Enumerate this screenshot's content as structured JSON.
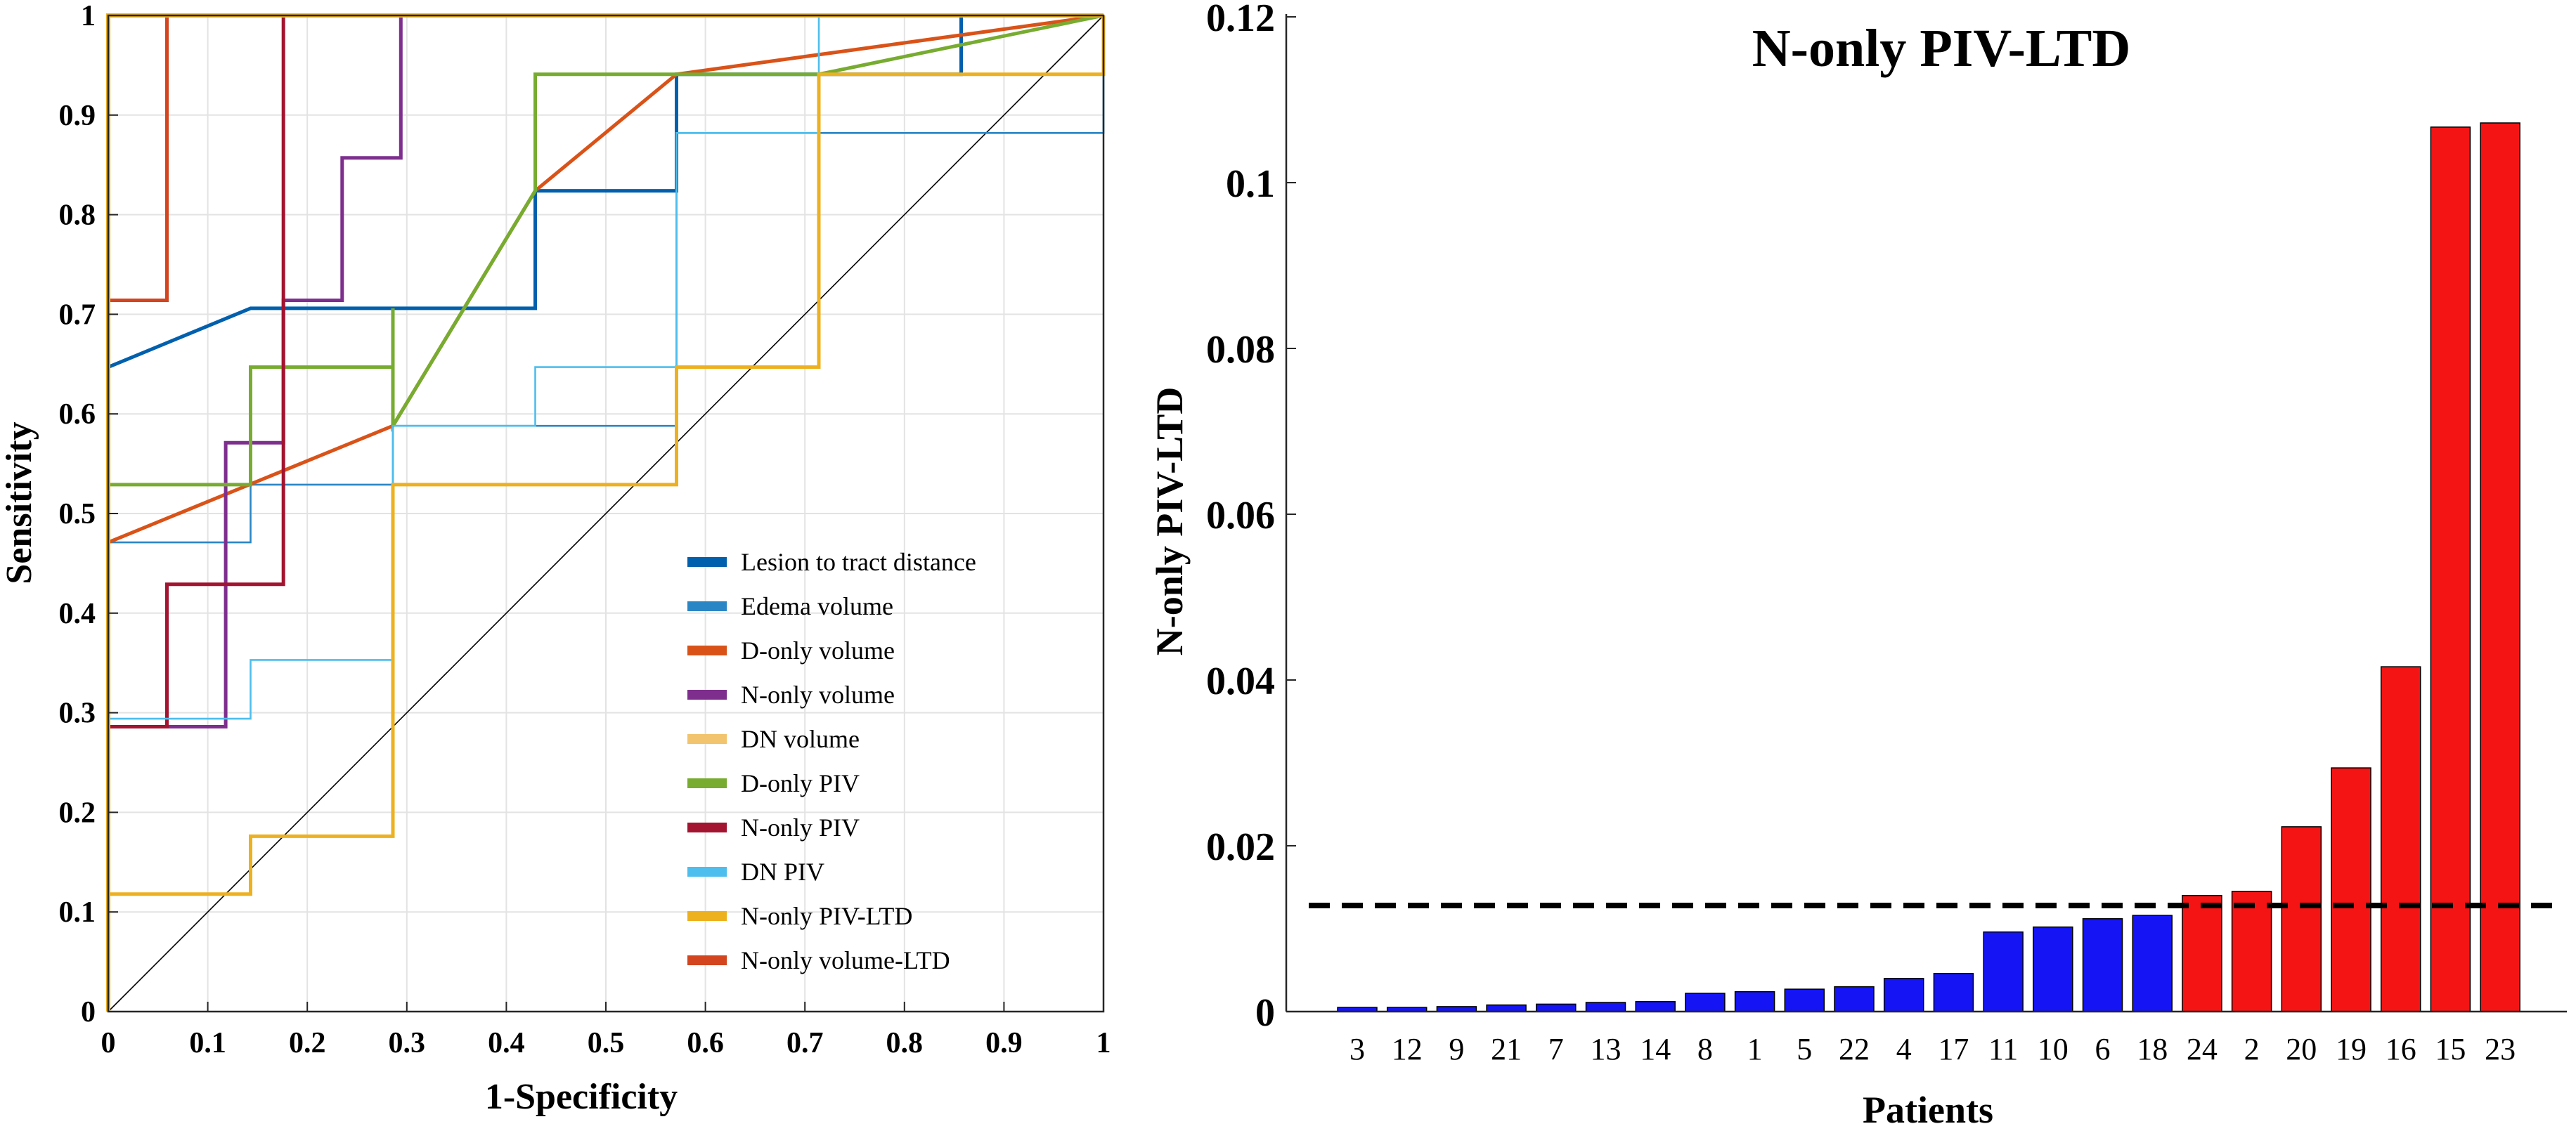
{
  "chart_data": [
    {
      "type": "line",
      "chart_kind": "roc",
      "title": "",
      "xlabel": "1-Specificity",
      "ylabel": "Sensitivity",
      "xlim": [
        0,
        1
      ],
      "ylim": [
        0,
        1
      ],
      "grid": true,
      "legend_position": "bottom-right",
      "x_ticks": [
        "0",
        "0.1",
        "0.2",
        "0.3",
        "0.4",
        "0.5",
        "0.6",
        "0.7",
        "0.8",
        "0.9",
        "1"
      ],
      "y_ticks": [
        "0",
        "0.1",
        "0.2",
        "0.3",
        "0.4",
        "0.5",
        "0.6",
        "0.7",
        "0.8",
        "0.9",
        "1"
      ],
      "diagonal": {
        "color": "#000000",
        "points": [
          [
            0,
            0
          ],
          [
            1,
            1
          ]
        ]
      },
      "series": [
        {
          "name": "Lesion to tract distance",
          "color": "#0060ad",
          "thick": true,
          "points": [
            [
              0,
              0.647
            ],
            [
              0.143,
              0.706
            ],
            [
              0.429,
              0.706
            ],
            [
              0.429,
              0.824
            ],
            [
              0.571,
              0.824
            ],
            [
              0.571,
              0.941
            ],
            [
              0.857,
              0.941
            ],
            [
              0.857,
              1
            ],
            [
              1,
              1
            ]
          ]
        },
        {
          "name": "Edema volume",
          "color": "#2b86c5",
          "thick": false,
          "points": [
            [
              0,
              0.471
            ],
            [
              0.143,
              0.471
            ],
            [
              0.143,
              0.529
            ],
            [
              0.286,
              0.529
            ],
            [
              0.286,
              0.588
            ],
            [
              0.571,
              0.588
            ],
            [
              0.571,
              0.882
            ],
            [
              1,
              0.882
            ],
            [
              1,
              0.941
            ]
          ]
        },
        {
          "name": "D-only volume",
          "color": "#d95319",
          "thick": true,
          "points": [
            [
              0,
              0.471
            ],
            [
              0.286,
              0.588
            ],
            [
              0.429,
              0.824
            ],
            [
              0.571,
              0.941
            ],
            [
              1,
              1
            ]
          ]
        },
        {
          "name": "N-only volume",
          "color": "#7e2f8e",
          "thick": true,
          "points": [
            [
              0,
              0.286
            ],
            [
              0.118,
              0.286
            ],
            [
              0.118,
              0.571
            ],
            [
              0.176,
              0.571
            ],
            [
              0.176,
              0.714
            ],
            [
              0.235,
              0.714
            ],
            [
              0.235,
              0.857
            ],
            [
              0.294,
              0.857
            ],
            [
              0.294,
              1
            ],
            [
              1,
              1
            ]
          ]
        },
        {
          "name": "DN volume",
          "color": "#f2c46d",
          "thick": true,
          "points": [
            [
              0,
              1
            ],
            [
              1,
              1
            ]
          ]
        },
        {
          "name": "D-only PIV",
          "color": "#77ac30",
          "thick": true,
          "points": [
            [
              0,
              0.529
            ],
            [
              0.143,
              0.529
            ],
            [
              0.143,
              0.647
            ],
            [
              0.286,
              0.647
            ],
            [
              0.286,
              0.706
            ],
            [
              0.286,
              0.588
            ],
            [
              0.429,
              0.824
            ],
            [
              0.429,
              0.941
            ],
            [
              0.714,
              0.941
            ],
            [
              1,
              1
            ]
          ]
        },
        {
          "name": "N-only PIV",
          "color": "#a2142f",
          "thick": true,
          "points": [
            [
              0,
              0.286
            ],
            [
              0.059,
              0.286
            ],
            [
              0.059,
              0.429
            ],
            [
              0.176,
              0.429
            ],
            [
              0.176,
              1
            ],
            [
              1,
              1
            ]
          ]
        },
        {
          "name": "DN PIV",
          "color": "#4dbeee",
          "thick": false,
          "points": [
            [
              0,
              0.294
            ],
            [
              0.143,
              0.294
            ],
            [
              0.143,
              0.353
            ],
            [
              0.286,
              0.353
            ],
            [
              0.286,
              0.588
            ],
            [
              0.429,
              0.588
            ],
            [
              0.429,
              0.647
            ],
            [
              0.571,
              0.647
            ],
            [
              0.571,
              0.882
            ],
            [
              0.714,
              0.882
            ],
            [
              0.714,
              1
            ],
            [
              1,
              1
            ]
          ]
        },
        {
          "name": "N-only PIV-LTD",
          "color": "#edb120",
          "thick": true,
          "points": [
            [
              0,
              0.118
            ],
            [
              0.143,
              0.118
            ],
            [
              0.143,
              0.176
            ],
            [
              0.286,
              0.176
            ],
            [
              0.286,
              0.529
            ],
            [
              0.571,
              0.529
            ],
            [
              0.571,
              0.647
            ],
            [
              0.714,
              0.647
            ],
            [
              0.714,
              0.941
            ],
            [
              1,
              0.941
            ],
            [
              1,
              1
            ]
          ]
        },
        {
          "name": "N-only volume-LTD",
          "color": "#d2451e",
          "thick": true,
          "points": [
            [
              0,
              0.714
            ],
            [
              0.059,
              0.714
            ],
            [
              0.059,
              1
            ],
            [
              1,
              1
            ]
          ]
        }
      ],
      "extra_lines": [
        {
          "color": "#edb120",
          "points": [
            [
              0,
              0
            ],
            [
              0,
              1
            ],
            [
              1,
              1
            ]
          ]
        }
      ]
    },
    {
      "type": "bar",
      "title": "N-only PIV-LTD",
      "xlabel": "Patients",
      "ylabel": "N-only PIV-LTD",
      "ylim": [
        0,
        0.12
      ],
      "y_ticks": [
        "0",
        "0.02",
        "0.04",
        "0.06",
        "0.08",
        "0.1",
        "0.12"
      ],
      "threshold": 0.0128,
      "categories": [
        "3",
        "12",
        "9",
        "21",
        "7",
        "13",
        "14",
        "8",
        "1",
        "5",
        "22",
        "4",
        "17",
        "11",
        "10",
        "6",
        "18",
        "24",
        "2",
        "20",
        "19",
        "16",
        "15",
        "23"
      ],
      "values": [
        0.0005,
        0.0005,
        0.0006,
        0.0008,
        0.0009,
        0.0011,
        0.0012,
        0.0022,
        0.0024,
        0.0027,
        0.003,
        0.004,
        0.0046,
        0.0096,
        0.0102,
        0.0112,
        0.0116,
        0.014,
        0.0145,
        0.0223,
        0.0294,
        0.0416,
        0.1067,
        0.1072
      ],
      "bar_colors": [
        "#1414f5",
        "#1414f5",
        "#1414f5",
        "#1414f5",
        "#1414f5",
        "#1414f5",
        "#1414f5",
        "#1414f5",
        "#1414f5",
        "#1414f5",
        "#1414f5",
        "#1414f5",
        "#1414f5",
        "#1414f5",
        "#1414f5",
        "#1414f5",
        "#1414f5",
        "#f51414",
        "#f51414",
        "#f51414",
        "#f51414",
        "#f51414",
        "#f51414",
        "#f51414"
      ]
    }
  ]
}
